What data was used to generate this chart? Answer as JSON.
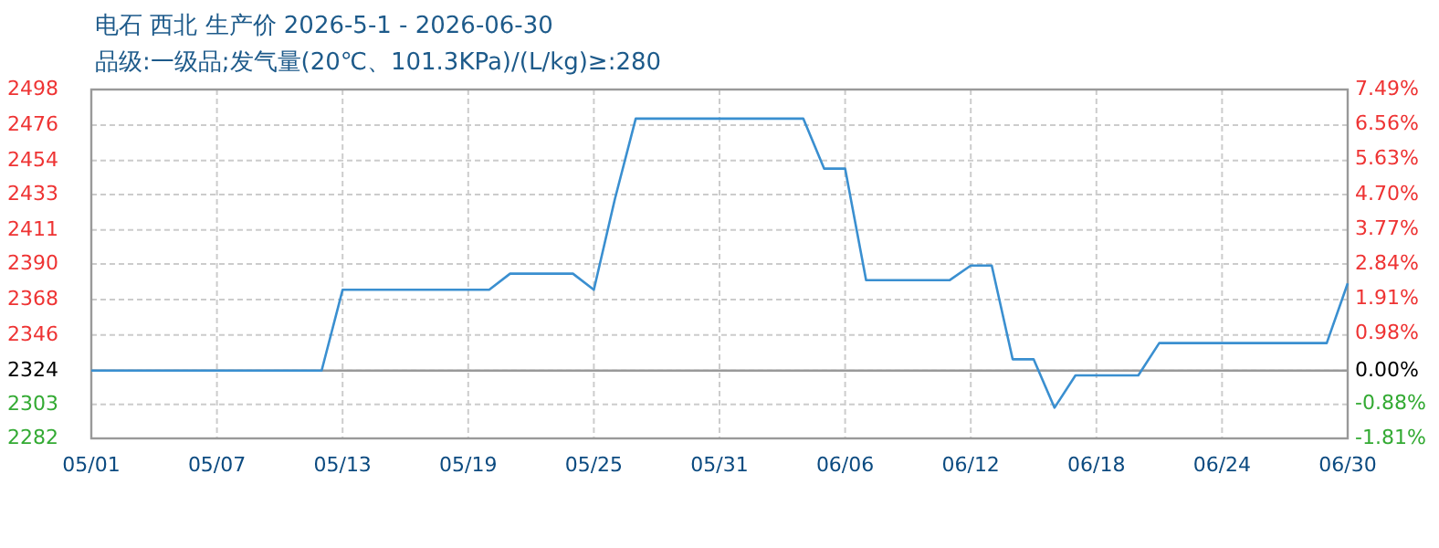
{
  "chart_data": {
    "type": "line",
    "title": "电石 西北 生产价 2026-5-1 - 2026-06-30",
    "subtitle": "品级:一级品;发气量(20℃、101.3KPa)/(L/kg)≥:280",
    "series": [
      {
        "color": "#3a8fd0",
        "x": [
          "2026-05-01",
          "2026-05-12",
          "2026-05-13",
          "2026-05-20",
          "2026-05-21",
          "2026-05-24",
          "2026-05-25",
          "2026-05-26",
          "2026-05-27",
          "2026-06-04",
          "2026-06-05",
          "2026-06-06",
          "2026-06-07",
          "2026-06-11",
          "2026-06-12",
          "2026-06-13",
          "2026-06-14",
          "2026-06-15",
          "2026-06-16",
          "2026-06-17",
          "2026-06-20",
          "2026-06-21",
          "2026-06-29",
          "2026-06-30"
        ],
        "values": [
          2324,
          2324,
          2374,
          2374,
          2384,
          2384,
          2374,
          2430,
          2480,
          2480,
          2449,
          2449,
          2380,
          2380,
          2389,
          2389,
          2331,
          2331,
          2301,
          2321,
          2321,
          2341,
          2341,
          2378
        ]
      }
    ],
    "xlim": [
      "2026-05-01",
      "2026-06-30"
    ],
    "xticks": [
      {
        "value": "2026-05-01",
        "label": "05/01"
      },
      {
        "value": "2026-05-07",
        "label": "05/07"
      },
      {
        "value": "2026-05-13",
        "label": "05/13"
      },
      {
        "value": "2026-05-19",
        "label": "05/19"
      },
      {
        "value": "2026-05-25",
        "label": "05/25"
      },
      {
        "value": "2026-05-31",
        "label": "05/31"
      },
      {
        "value": "2026-06-06",
        "label": "06/06"
      },
      {
        "value": "2026-06-12",
        "label": "06/12"
      },
      {
        "value": "2026-06-18",
        "label": "06/18"
      },
      {
        "value": "2026-06-24",
        "label": "06/24"
      },
      {
        "value": "2026-06-30",
        "label": "06/30"
      }
    ],
    "ylim": [
      2282,
      2498
    ],
    "yticks": [
      2282,
      2303,
      2324,
      2346,
      2368,
      2390,
      2411,
      2433,
      2454,
      2476,
      2498
    ],
    "y2lim": [
      -1.81,
      7.49
    ],
    "y2ticks": [
      {
        "value": -1.81,
        "label": "-1.81%"
      },
      {
        "value": -0.88,
        "label": "-0.88%"
      },
      {
        "value": 0,
        "label": "0.00%"
      },
      {
        "value": 0.98,
        "label": "0.98%"
      },
      {
        "value": 1.91,
        "label": "1.91%"
      },
      {
        "value": 2.84,
        "label": "2.84%"
      },
      {
        "value": 3.77,
        "label": "3.77%"
      },
      {
        "value": 4.7,
        "label": "4.70%"
      },
      {
        "value": 5.63,
        "label": "5.63%"
      },
      {
        "value": 6.56,
        "label": "6.56%"
      },
      {
        "value": 7.49,
        "label": "7.49%"
      }
    ],
    "ref_lines": [
      {
        "axis": "y",
        "value": 2324,
        "color": "#999999",
        "line_style": "solid"
      }
    ],
    "grid": true,
    "marker": "none",
    "line_style": "solid"
  }
}
